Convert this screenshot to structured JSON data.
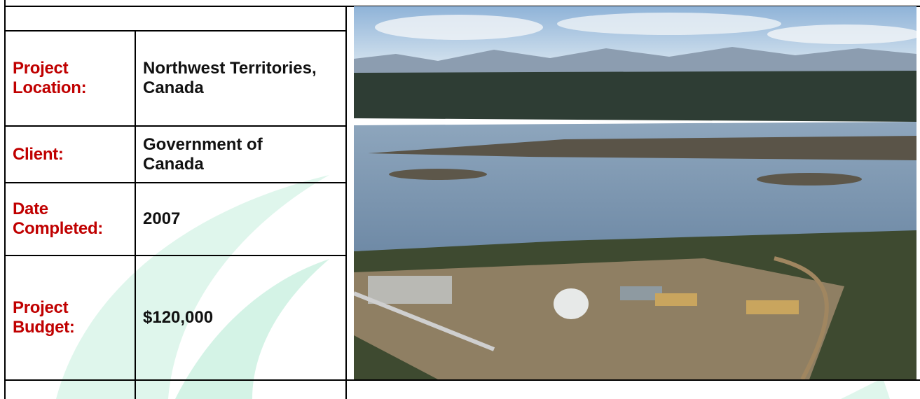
{
  "table": {
    "rows": [
      [
        "Project Location:",
        "Northwest Territories, Canada"
      ],
      [
        "Client:",
        "Government of Canada"
      ],
      [
        "Date Completed:",
        "2007"
      ],
      [
        "Project Budget:",
        "$120,000"
      ]
    ]
  }
}
